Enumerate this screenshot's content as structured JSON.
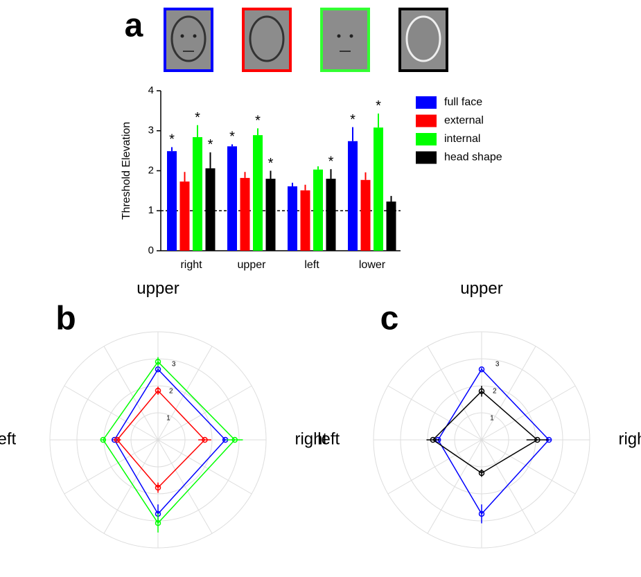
{
  "chart_data": [
    {
      "type": "bar",
      "panel": "a",
      "ylabel": "Threshold Elevation",
      "categories": [
        "right",
        "upper",
        "left",
        "lower"
      ],
      "ylim": [
        0,
        4
      ],
      "yticks": [
        0,
        1,
        2,
        3,
        4
      ],
      "reference_line": 1,
      "series": [
        {
          "name": "full face",
          "color": "#0000ff",
          "values": [
            2.49,
            2.61,
            1.61,
            2.74
          ],
          "errors": [
            0.1,
            0.05,
            0.09,
            0.35
          ],
          "significance": [
            "*",
            "*",
            null,
            "*"
          ]
        },
        {
          "name": "external",
          "color": "#ff0000",
          "values": [
            1.73,
            1.82,
            1.51,
            1.77
          ],
          "errors": [
            0.24,
            0.15,
            0.14,
            0.19
          ],
          "significance": [
            null,
            null,
            null,
            null
          ]
        },
        {
          "name": "internal",
          "color": "#00ff00",
          "values": [
            2.84,
            2.89,
            2.03,
            3.08
          ],
          "errors": [
            0.3,
            0.17,
            0.08,
            0.35
          ],
          "significance": [
            "*",
            "*",
            null,
            "*"
          ]
        },
        {
          "name": "head shape",
          "color": "#000000",
          "values": [
            2.06,
            1.8,
            1.8,
            1.23
          ],
          "errors": [
            0.4,
            0.2,
            0.24,
            0.14
          ],
          "significance": [
            "*",
            "*",
            "*",
            null
          ]
        }
      ]
    },
    {
      "type": "radar",
      "panel": "b",
      "categories": [
        "upper",
        "right",
        "lower",
        "left"
      ],
      "rlim": [
        0,
        4
      ],
      "rticks": [
        1,
        2,
        3
      ],
      "series": [
        {
          "color": "#0000ff",
          "values": [
            2.61,
            2.49,
            2.74,
            1.61
          ],
          "errors": [
            0.05,
            0.1,
            0.35,
            0.09
          ]
        },
        {
          "color": "#ff0000",
          "values": [
            1.82,
            1.73,
            1.77,
            1.51
          ],
          "errors": [
            0.15,
            0.24,
            0.19,
            0.14
          ]
        },
        {
          "color": "#00ff00",
          "values": [
            2.89,
            2.84,
            3.08,
            2.03
          ],
          "errors": [
            0.17,
            0.3,
            0.35,
            0.08
          ]
        }
      ]
    },
    {
      "type": "radar",
      "panel": "c",
      "categories": [
        "upper",
        "right",
        "lower",
        "left"
      ],
      "rlim": [
        0,
        4
      ],
      "rticks": [
        1,
        2,
        3
      ],
      "series": [
        {
          "color": "#0000ff",
          "values": [
            2.61,
            2.49,
            2.74,
            1.61
          ],
          "errors": [
            0.05,
            0.1,
            0.35,
            0.09
          ]
        },
        {
          "color": "#000000",
          "values": [
            1.8,
            2.06,
            1.23,
            1.8
          ],
          "errors": [
            0.2,
            0.4,
            0.14,
            0.24
          ]
        }
      ]
    }
  ]
}
